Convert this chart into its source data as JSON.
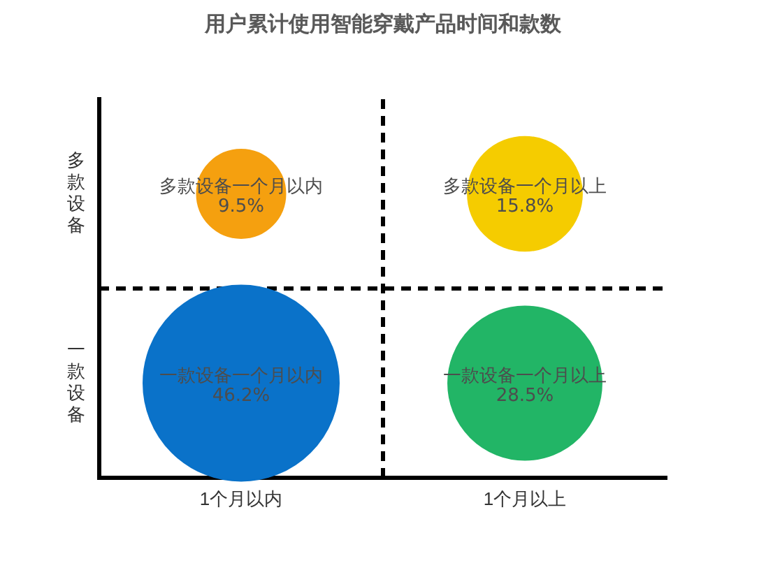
{
  "chart_data": {
    "type": "other",
    "title": "用户累计使用智能穿戴产品时间和款数",
    "categories": [
      "1个月以内",
      "1个月以上"
    ],
    "y_categories": [
      "多款设备",
      "一款设备"
    ],
    "series": [
      {
        "colors": [
          "#f5a00f",
          "#f5cc00"
        ],
        "values": [
          9.5,
          15.8
        ],
        "value_labels": [
          "9.5%",
          "15.8%"
        ]
      },
      {
        "colors": [
          "#0a72c9",
          "#22b566"
        ],
        "values": [
          46.2,
          28.5
        ],
        "value_labels": [
          "46.2%",
          "28.5%"
        ]
      }
    ],
    "annotations": [
      {
        "text": "多款设备一个月以内",
        "x": "1个月以内",
        "y": "多款设备"
      },
      {
        "text": "多款设备一个月以上",
        "x": "1个月以上",
        "y": "多款设备"
      },
      {
        "text": "一款设备一个月以内",
        "x": "1个月以内",
        "y": "一款设备"
      },
      {
        "text": "一款设备一个月以上",
        "x": "1个月以上",
        "y": "一款设备"
      }
    ]
  }
}
